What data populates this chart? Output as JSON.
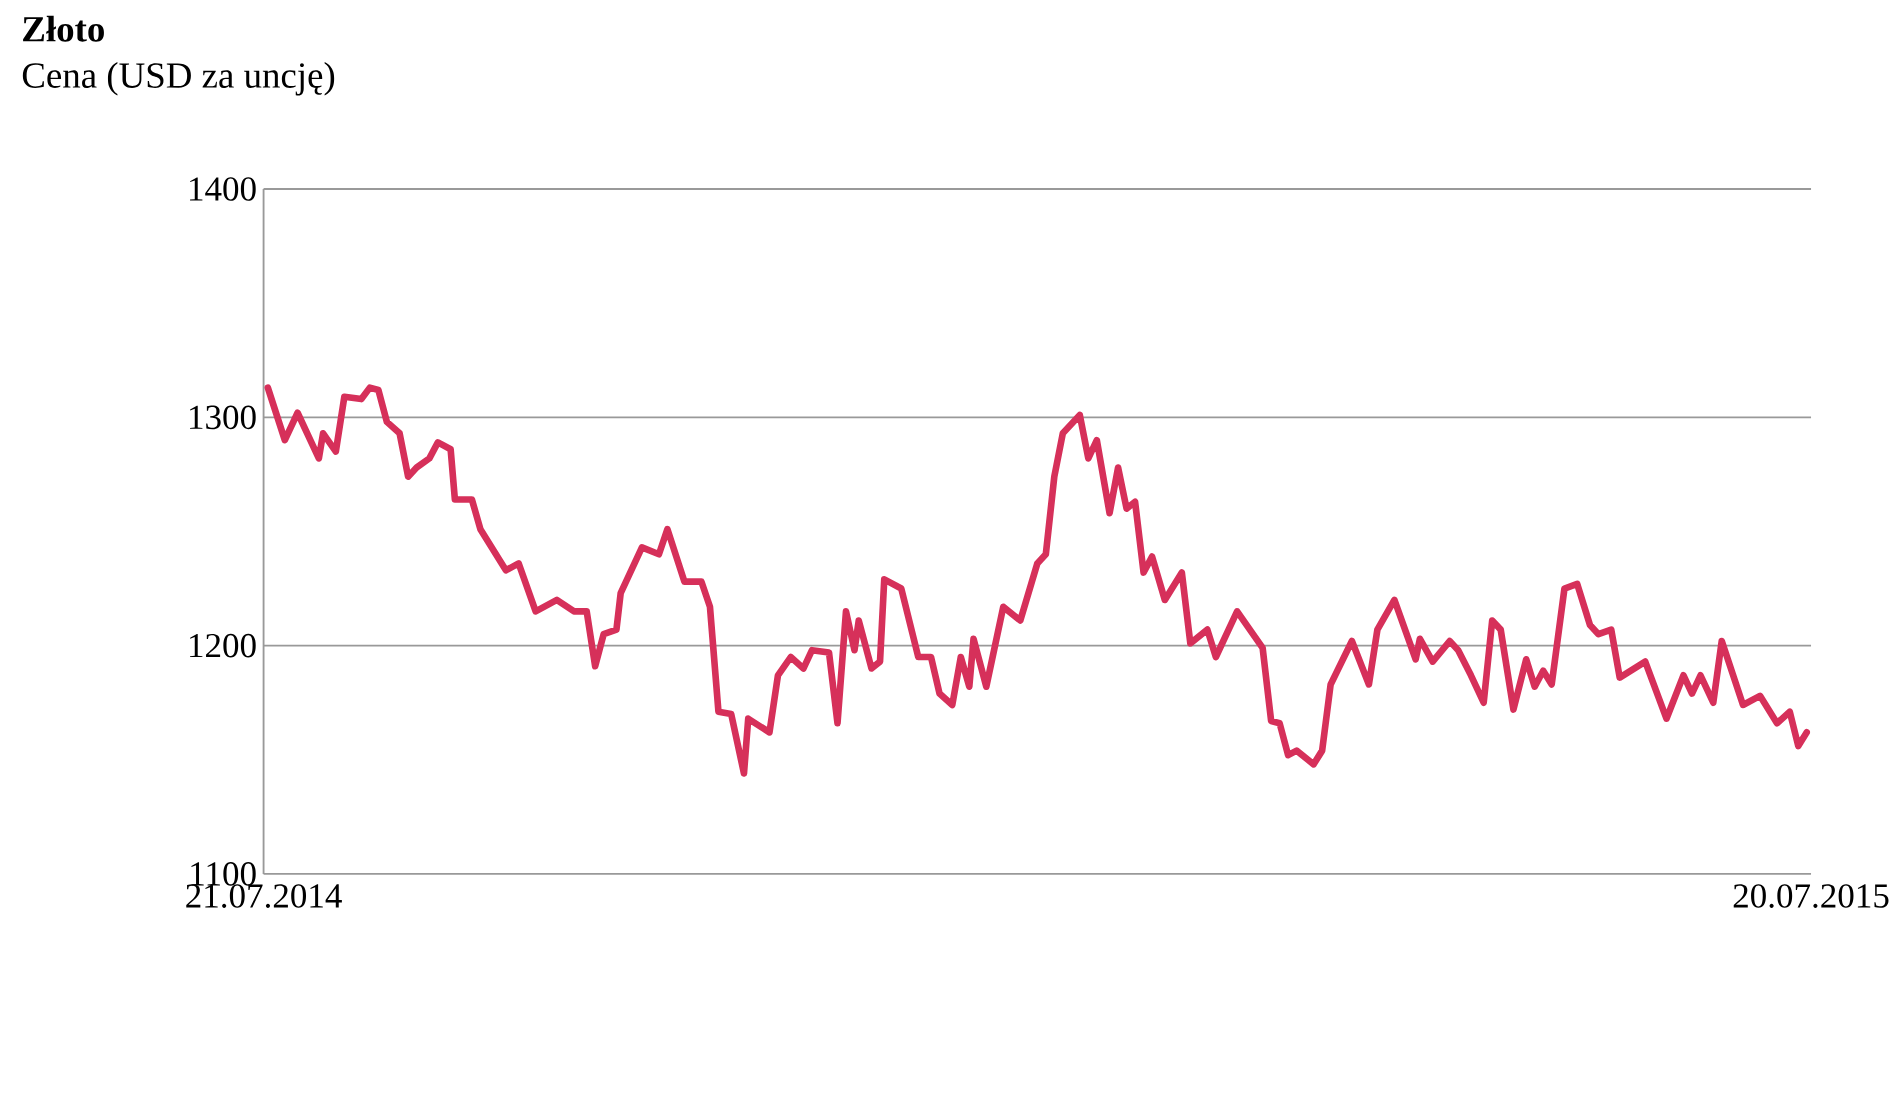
{
  "chart_data": {
    "type": "line",
    "title": "Złoto",
    "subtitle": "Cena (USD za uncję)",
    "x": [
      "2014-07-22",
      "2014-07-26",
      "2014-07-29",
      "2014-08-03",
      "2014-08-04",
      "2014-08-07",
      "2014-08-09",
      "2014-08-13",
      "2014-08-15",
      "2014-08-17",
      "2014-08-19",
      "2014-08-22",
      "2014-08-24",
      "2014-08-26",
      "2014-08-29",
      "2014-08-31",
      "2014-09-03",
      "2014-09-04",
      "2014-09-08",
      "2014-09-10",
      "2014-09-16",
      "2014-09-19",
      "2014-09-23",
      "2014-09-28",
      "2014-10-02",
      "2014-10-05",
      "2014-10-07",
      "2014-10-09",
      "2014-10-12",
      "2014-10-13",
      "2014-10-18",
      "2014-10-22",
      "2014-10-24",
      "2014-10-28",
      "2014-11-01",
      "2014-11-03",
      "2014-11-05",
      "2014-11-08",
      "2014-11-11",
      "2014-11-12",
      "2014-11-17",
      "2014-11-19",
      "2014-11-22",
      "2014-11-25",
      "2014-11-27",
      "2014-12-01",
      "2014-12-03",
      "2014-12-05",
      "2014-12-07",
      "2014-12-08",
      "2014-12-11",
      "2014-12-13",
      "2014-12-14",
      "2014-12-18",
      "2014-12-22",
      "2014-12-25",
      "2014-12-27",
      "2014-12-30",
      "2015-01-01",
      "2015-01-03",
      "2015-01-04",
      "2015-01-07",
      "2015-01-11",
      "2015-01-15",
      "2015-01-19",
      "2015-01-21",
      "2015-01-23",
      "2015-01-25",
      "2015-01-29",
      "2015-01-31",
      "2015-02-02",
      "2015-02-05",
      "2015-02-07",
      "2015-02-09",
      "2015-02-11",
      "2015-02-13",
      "2015-02-15",
      "2015-02-18",
      "2015-02-22",
      "2015-02-24",
      "2015-02-28",
      "2015-03-02",
      "2015-03-07",
      "2015-03-13",
      "2015-03-15",
      "2015-03-17",
      "2015-03-19",
      "2015-03-21",
      "2015-03-25",
      "2015-03-27",
      "2015-03-29",
      "2015-04-03",
      "2015-04-07",
      "2015-04-09",
      "2015-04-13",
      "2015-04-18",
      "2015-04-19",
      "2015-04-22",
      "2015-04-26",
      "2015-04-28",
      "2015-05-01",
      "2015-05-04",
      "2015-05-06",
      "2015-05-08",
      "2015-05-11",
      "2015-05-14",
      "2015-05-16",
      "2015-05-18",
      "2015-05-20",
      "2015-05-23",
      "2015-05-26",
      "2015-05-29",
      "2015-05-31",
      "2015-06-03",
      "2015-06-05",
      "2015-06-11",
      "2015-06-16",
      "2015-06-20",
      "2015-06-22",
      "2015-06-24",
      "2015-06-27",
      "2015-06-29",
      "2015-07-04",
      "2015-07-08",
      "2015-07-12",
      "2015-07-15",
      "2015-07-17",
      "2015-07-19"
    ],
    "series": [
      {
        "color": "#d6305a",
        "values": [
          1313,
          1290,
          1302,
          1282,
          1293,
          1285,
          1309,
          1308,
          1313,
          1312,
          1298,
          1293,
          1274,
          1278,
          1282,
          1289,
          1286,
          1264,
          1264,
          1251,
          1233,
          1236,
          1215,
          1220,
          1215,
          1215,
          1191,
          1205,
          1207,
          1223,
          1243,
          1240,
          1251,
          1228,
          1228,
          1217,
          1171,
          1170,
          1144,
          1168,
          1162,
          1187,
          1195,
          1190,
          1198,
          1197,
          1166,
          1215,
          1198,
          1211,
          1190,
          1193,
          1229,
          1225,
          1195,
          1195,
          1179,
          1174,
          1195,
          1182,
          1203,
          1182,
          1217,
          1211,
          1236,
          1240,
          1274,
          1293,
          1301,
          1282,
          1290,
          1258,
          1278,
          1260,
          1263,
          1232,
          1239,
          1220,
          1232,
          1201,
          1207,
          1195,
          1215,
          1199,
          1167,
          1166,
          1152,
          1154,
          1148,
          1154,
          1183,
          1202,
          1183,
          1207,
          1220,
          1194,
          1203,
          1193,
          1202,
          1198,
          1187,
          1175,
          1211,
          1207,
          1172,
          1194,
          1182,
          1189,
          1183,
          1225,
          1227,
          1209,
          1205,
          1207,
          1186,
          1193,
          1168,
          1187,
          1179,
          1187,
          1175,
          1202,
          1174,
          1178,
          1166,
          1171,
          1156,
          1162
        ]
      }
    ],
    "xlim": [
      "2014-07-21",
      "2015-07-20"
    ],
    "xticks": [
      {
        "value": "2014-07-21",
        "label": "21.07.2014"
      },
      {
        "value": "2015-07-20",
        "label": "20.07.2015"
      }
    ],
    "ylim": [
      1100,
      1400
    ],
    "yticks": [
      1100,
      1200,
      1300,
      1400
    ],
    "grid": "y",
    "line_style": "solid",
    "marker": "none"
  }
}
